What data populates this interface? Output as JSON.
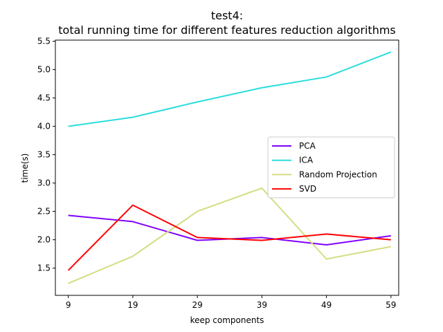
{
  "chart_data": {
    "type": "line",
    "title_line1": "test4:",
    "title_line2": "total running time for different features reduction algorithms",
    "xlabel": "keep components",
    "ylabel": "time(s)",
    "x": [
      9,
      19,
      29,
      39,
      49,
      59
    ],
    "x_tick_labels": [
      "9",
      "19",
      "29",
      "39",
      "49",
      "59"
    ],
    "y_ticks": [
      1.5,
      2.0,
      2.5,
      3.0,
      3.5,
      4.0,
      4.5,
      5.0,
      5.5
    ],
    "y_tick_labels": [
      "1.5",
      "2.0",
      "2.5",
      "3.0",
      "3.5",
      "4.0",
      "4.5",
      "5.0",
      "5.5"
    ],
    "xlim": [
      7,
      60.2
    ],
    "ylim": [
      1.02,
      5.52
    ],
    "grid": false,
    "legend_position": "center-right",
    "series": [
      {
        "name": "PCA",
        "color": "#8000ff",
        "values": [
          2.43,
          2.32,
          1.99,
          2.04,
          1.91,
          2.07
        ]
      },
      {
        "name": "ICA",
        "color": "#2adddd",
        "values": [
          4.0,
          4.16,
          4.43,
          4.68,
          4.87,
          5.31
        ]
      },
      {
        "name": "Random Projection",
        "color": "#d4dd80",
        "values": [
          1.23,
          1.71,
          2.5,
          2.91,
          1.66,
          1.88
        ]
      },
      {
        "name": "SVD",
        "color": "#ff0000",
        "values": [
          1.46,
          2.61,
          2.04,
          1.99,
          2.1,
          2.0
        ]
      }
    ]
  }
}
